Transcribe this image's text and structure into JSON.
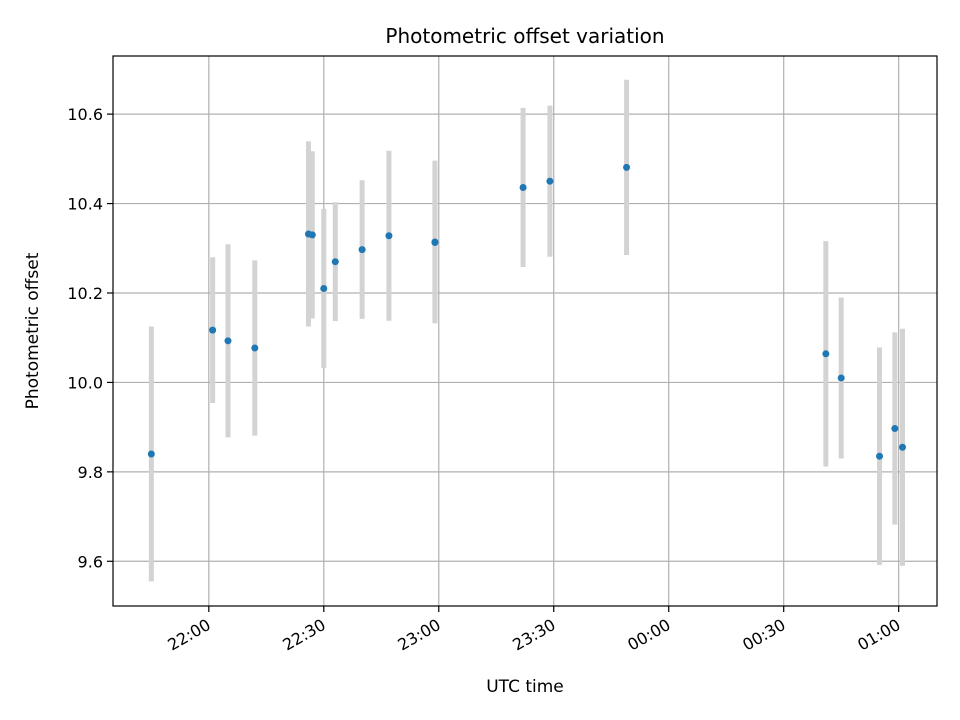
{
  "chart_data": {
    "type": "scatter",
    "title": "Photometric offset variation",
    "xlabel": "UTC time",
    "ylabel": "Photometric offset",
    "xlim": [
      "21:35",
      "01:10"
    ],
    "ylim": [
      9.5,
      10.73
    ],
    "x_ticks": [
      "22:00",
      "22:30",
      "23:00",
      "23:30",
      "00:00",
      "00:30",
      "01:00"
    ],
    "y_ticks": [
      9.6,
      9.8,
      10.0,
      10.2,
      10.4,
      10.6
    ],
    "grid": true,
    "point_color": "#1f77b4",
    "errorbar_color": "#d3d3d3",
    "points": [
      {
        "x": "21:45",
        "y": 9.84,
        "err": 0.285
      },
      {
        "x": "22:01",
        "y": 10.117,
        "err": 0.163
      },
      {
        "x": "22:05",
        "y": 10.093,
        "err": 0.216
      },
      {
        "x": "22:12",
        "y": 10.077,
        "err": 0.196
      },
      {
        "x": "22:26",
        "y": 10.332,
        "err": 0.207
      },
      {
        "x": "22:27",
        "y": 10.33,
        "err": 0.187
      },
      {
        "x": "22:30",
        "y": 10.21,
        "err": 0.178
      },
      {
        "x": "22:33",
        "y": 10.27,
        "err": 0.133
      },
      {
        "x": "22:40",
        "y": 10.297,
        "err": 0.155
      },
      {
        "x": "22:47",
        "y": 10.328,
        "err": 0.19
      },
      {
        "x": "22:59",
        "y": 10.314,
        "err": 0.182
      },
      {
        "x": "22:59",
        "y": 10.313,
        "err": 0.168
      },
      {
        "x": "23:22",
        "y": 10.436,
        "err": 0.178
      },
      {
        "x": "23:29",
        "y": 10.45,
        "err": 0.169
      },
      {
        "x": "23:49",
        "y": 10.481,
        "err": 0.196
      },
      {
        "x": "00:41",
        "y": 10.064,
        "err": 0.252
      },
      {
        "x": "00:45",
        "y": 10.01,
        "err": 0.18
      },
      {
        "x": "00:55",
        "y": 9.835,
        "err": 0.243
      },
      {
        "x": "00:59",
        "y": 9.897,
        "err": 0.215
      },
      {
        "x": "01:01",
        "y": 9.855,
        "err": 0.265
      }
    ]
  }
}
